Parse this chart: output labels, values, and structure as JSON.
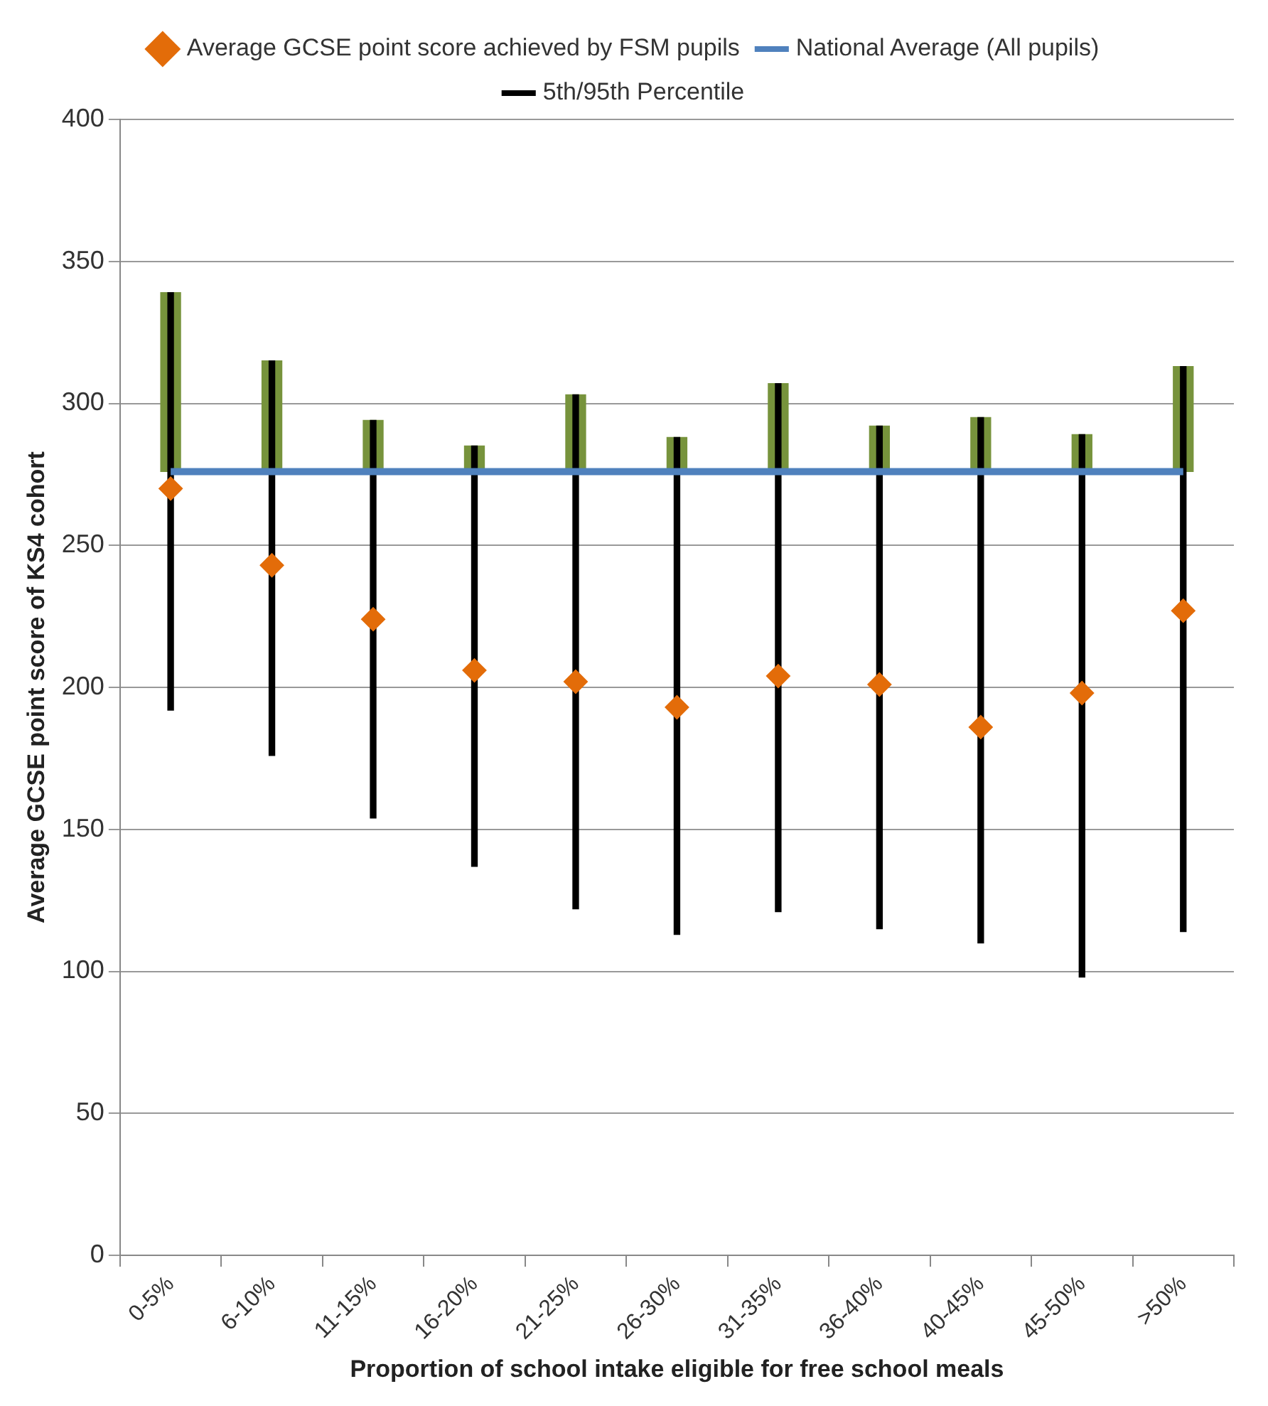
{
  "chart_data": {
    "type": "bar",
    "xlabel": "Proportion of school intake eligible for free school meals",
    "ylabel": "Average GCSE point score of KS4 cohort",
    "categories": [
      "0-5%",
      "6-10%",
      "11-15%",
      "16-20%",
      "21-25%",
      "26-30%",
      "31-35%",
      "36-40%",
      "40-45%",
      "45-50%",
      ">50%"
    ],
    "ylim": [
      0,
      400
    ],
    "yticks": [
      0,
      50,
      100,
      150,
      200,
      250,
      300,
      350,
      400
    ],
    "grid": "y",
    "legend": "top",
    "series": [
      {
        "name": "Average GCSE point score achieved by FSM pupils",
        "type": "scatter",
        "marker": "diamond",
        "color": "#e36c09",
        "values": [
          270,
          243,
          224,
          206,
          202,
          193,
          204,
          201,
          186,
          198,
          227
        ]
      },
      {
        "name": "5th/95th Percentile",
        "type": "bar",
        "color": "#000000",
        "base": [
          192,
          176,
          154,
          137,
          122,
          113,
          121,
          115,
          110,
          98,
          114
        ],
        "values": [
          147,
          139,
          140,
          148,
          181,
          175,
          186,
          177,
          185,
          191,
          199
        ]
      },
      {
        "color": "#77933c",
        "base": [
          276,
          276,
          276,
          276,
          276,
          276,
          276,
          276,
          276,
          276,
          276
        ],
        "values": [
          63,
          39,
          18,
          9,
          27,
          12,
          31,
          16,
          19,
          13,
          37
        ]
      },
      {
        "name": "National Average (All pupils)",
        "type": "line",
        "marker": "none",
        "color": "#4f81bd",
        "values": [
          276,
          276,
          276,
          276,
          276,
          276,
          276,
          276,
          276,
          276,
          276
        ]
      }
    ]
  }
}
